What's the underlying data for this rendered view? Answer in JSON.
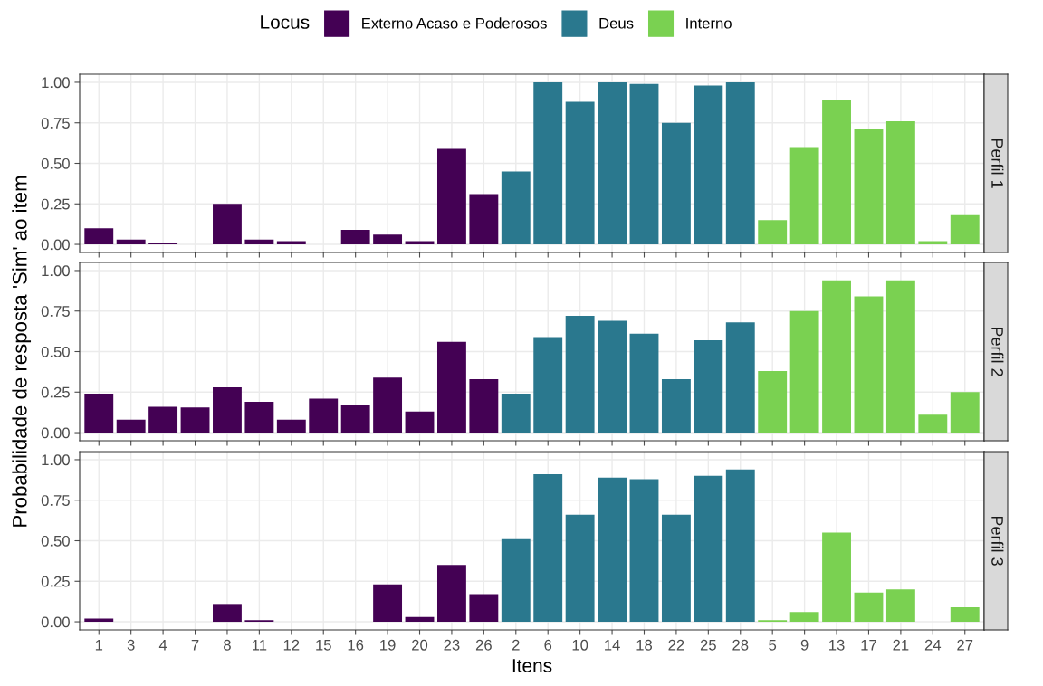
{
  "chart_data": [
    {
      "type": "bar",
      "title": "Perfil 1",
      "legend_title": "Locus",
      "legend": "top",
      "grid": true,
      "tick_labels": "y",
      "categories": [
        "1",
        "3",
        "4",
        "7",
        "8",
        "11",
        "12",
        "15",
        "16",
        "19",
        "20",
        "23",
        "26",
        "2",
        "6",
        "10",
        "14",
        "18",
        "22",
        "25",
        "28",
        "5",
        "9",
        "13",
        "17",
        "21",
        "24",
        "27"
      ],
      "ylim": [
        -0.05,
        1.05
      ],
      "yticks": [
        {
          "value": 0,
          "label": "0.00"
        },
        {
          "value": 0.25,
          "label": "0.25"
        },
        {
          "value": 0.5,
          "label": "0.50"
        },
        {
          "value": 0.75,
          "label": "0.75"
        },
        {
          "value": 1,
          "label": "1.00"
        }
      ],
      "series": [
        {
          "name": "Externo Acaso e Poderosos",
          "color": "#440154",
          "values": [
            0.1,
            0.03,
            0.01,
            0,
            0.25,
            0.03,
            0.02,
            0,
            0.09,
            0.06,
            0.02,
            0.59,
            0.31,
            null,
            null,
            null,
            null,
            null,
            null,
            null,
            null,
            null,
            null,
            null,
            null,
            null,
            null,
            null
          ]
        },
        {
          "name": "Deus",
          "color": "#2a788e",
          "values": [
            null,
            null,
            null,
            null,
            null,
            null,
            null,
            null,
            null,
            null,
            null,
            null,
            null,
            0.45,
            1.0,
            0.88,
            1.0,
            0.99,
            0.75,
            0.98,
            1.0,
            null,
            null,
            null,
            null,
            null,
            null,
            null
          ]
        },
        {
          "name": "Interno",
          "color": "#7ad151",
          "values": [
            null,
            null,
            null,
            null,
            null,
            null,
            null,
            null,
            null,
            null,
            null,
            null,
            null,
            null,
            null,
            null,
            null,
            null,
            null,
            null,
            null,
            0.15,
            0.6,
            0.89,
            0.71,
            0.76,
            0.02,
            0.18
          ]
        }
      ]
    },
    {
      "type": "bar",
      "title": "Perfil 2",
      "ylabel": "Probabilidade de resposta 'Sim' ao item",
      "grid": true,
      "tick_labels": "y",
      "categories": [
        "1",
        "3",
        "4",
        "7",
        "8",
        "11",
        "12",
        "15",
        "16",
        "19",
        "20",
        "23",
        "26",
        "2",
        "6",
        "10",
        "14",
        "18",
        "22",
        "25",
        "28",
        "5",
        "9",
        "13",
        "17",
        "21",
        "24",
        "27"
      ],
      "ylim": [
        -0.05,
        1.05
      ],
      "yticks": [
        {
          "value": 0,
          "label": "0.00"
        },
        {
          "value": 0.25,
          "label": "0.25"
        },
        {
          "value": 0.5,
          "label": "0.50"
        },
        {
          "value": 0.75,
          "label": "0.75"
        },
        {
          "value": 1,
          "label": "1.00"
        }
      ],
      "series": [
        {
          "color": "#440154",
          "values": [
            0.24,
            0.08,
            0.16,
            0.155,
            0.28,
            0.19,
            0.08,
            0.21,
            0.17,
            0.34,
            0.13,
            0.56,
            0.33,
            null,
            null,
            null,
            null,
            null,
            null,
            null,
            null,
            null,
            null,
            null,
            null,
            null,
            null,
            null
          ]
        },
        {
          "color": "#2a788e",
          "values": [
            null,
            null,
            null,
            null,
            null,
            null,
            null,
            null,
            null,
            null,
            null,
            null,
            null,
            0.24,
            0.59,
            0.72,
            0.69,
            0.61,
            0.33,
            0.57,
            0.68,
            null,
            null,
            null,
            null,
            null,
            null,
            null
          ]
        },
        {
          "color": "#7ad151",
          "values": [
            null,
            null,
            null,
            null,
            null,
            null,
            null,
            null,
            null,
            null,
            null,
            null,
            null,
            null,
            null,
            null,
            null,
            null,
            null,
            null,
            null,
            0.38,
            0.75,
            0.94,
            0.84,
            0.94,
            0.11,
            0.25
          ]
        }
      ]
    },
    {
      "type": "bar",
      "title": "Perfil 3",
      "xlabel": "Itens",
      "grid": true,
      "categories": [
        "1",
        "3",
        "4",
        "7",
        "8",
        "11",
        "12",
        "15",
        "16",
        "19",
        "20",
        "23",
        "26",
        "2",
        "6",
        "10",
        "14",
        "18",
        "22",
        "25",
        "28",
        "5",
        "9",
        "13",
        "17",
        "21",
        "24",
        "27"
      ],
      "ylim": [
        -0.05,
        1.05
      ],
      "yticks": [
        {
          "value": 0,
          "label": "0.00"
        },
        {
          "value": 0.25,
          "label": "0.25"
        },
        {
          "value": 0.5,
          "label": "0.50"
        },
        {
          "value": 0.75,
          "label": "0.75"
        },
        {
          "value": 1,
          "label": "1.00"
        }
      ],
      "series": [
        {
          "color": "#440154",
          "values": [
            0.02,
            0,
            0,
            0,
            0.11,
            0.01,
            0,
            0,
            0,
            0.23,
            0.03,
            0.35,
            0.17,
            null,
            null,
            null,
            null,
            null,
            null,
            null,
            null,
            null,
            null,
            null,
            null,
            null,
            null,
            null
          ]
        },
        {
          "color": "#2a788e",
          "values": [
            null,
            null,
            null,
            null,
            null,
            null,
            null,
            null,
            null,
            null,
            null,
            null,
            null,
            0.51,
            0.91,
            0.66,
            0.89,
            0.88,
            0.66,
            0.9,
            0.94,
            null,
            null,
            null,
            null,
            null,
            null,
            null
          ]
        },
        {
          "color": "#7ad151",
          "values": [
            null,
            null,
            null,
            null,
            null,
            null,
            null,
            null,
            null,
            null,
            null,
            null,
            null,
            null,
            null,
            null,
            null,
            null,
            null,
            null,
            null,
            0.01,
            0.06,
            0.55,
            0.18,
            0.2,
            0,
            0.09
          ]
        }
      ]
    }
  ]
}
